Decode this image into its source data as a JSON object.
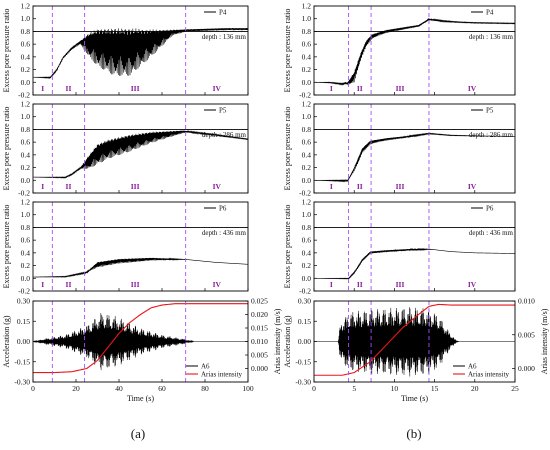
{
  "figure": {
    "caption_a": "(a)",
    "caption_b": "(b)"
  },
  "chart_data": [
    {
      "id": "a_p4",
      "type": "line",
      "column": "a",
      "row": 0,
      "ylabel": "Excess pore pressure ratio",
      "ylim": [
        -0.2,
        1.2
      ],
      "yticks": [
        -0.2,
        0.0,
        0.2,
        0.4,
        0.6,
        0.8,
        1.0,
        1.2
      ],
      "xlim": [
        0,
        100
      ],
      "xticks": [
        0,
        20,
        40,
        60,
        80,
        100
      ],
      "reference_line": 0.8,
      "legend": "P4",
      "annotation": "depth : 136 mm",
      "phase_boundaries": [
        9,
        24,
        71
      ],
      "phase_labels": [
        "I",
        "II",
        "III",
        "IV"
      ],
      "series": [
        {
          "color": "#000000",
          "envelope": [
            [
              0,
              0.08
            ],
            [
              8,
              0.08
            ],
            [
              11,
              0.2
            ],
            [
              14,
              0.4
            ],
            [
              18,
              0.55
            ],
            [
              22,
              0.65
            ],
            [
              26,
              0.75
            ],
            [
              30,
              0.8
            ],
            [
              40,
              0.8
            ],
            [
              55,
              0.8
            ],
            [
              65,
              0.82
            ],
            [
              71,
              0.83
            ],
            [
              80,
              0.84
            ],
            [
              90,
              0.85
            ],
            [
              100,
              0.85
            ]
          ],
          "oscillation": [
            [
              0,
              0
            ],
            [
              10,
              0.02
            ],
            [
              22,
              0.05
            ],
            [
              26,
              0.35
            ],
            [
              30,
              0.55
            ],
            [
              38,
              0.7
            ],
            [
              45,
              0.7
            ],
            [
              55,
              0.4
            ],
            [
              65,
              0.08
            ],
            [
              72,
              0.03
            ],
            [
              100,
              0.03
            ]
          ]
        }
      ]
    },
    {
      "id": "a_p5",
      "type": "line",
      "column": "a",
      "row": 1,
      "ylabel": "Excess pore pressure ratio",
      "ylim": [
        -0.2,
        1.2
      ],
      "yticks": [
        -0.2,
        0.0,
        0.2,
        0.4,
        0.6,
        0.8,
        1.0,
        1.2
      ],
      "xlim": [
        0,
        100
      ],
      "xticks": [
        0,
        20,
        40,
        60,
        80,
        100
      ],
      "reference_line": 0.8,
      "legend": "P5",
      "annotation": "depth : 286 mm",
      "phase_boundaries": [
        9,
        24,
        71
      ],
      "phase_labels": [
        "I",
        "II",
        "III",
        "IV"
      ],
      "series": [
        {
          "color": "#000000",
          "envelope": [
            [
              0,
              0.05
            ],
            [
              15,
              0.05
            ],
            [
              18,
              0.1
            ],
            [
              22,
              0.2
            ],
            [
              26,
              0.38
            ],
            [
              30,
              0.55
            ],
            [
              35,
              0.62
            ],
            [
              45,
              0.7
            ],
            [
              55,
              0.75
            ],
            [
              70,
              0.78
            ],
            [
              85,
              0.72
            ],
            [
              100,
              0.65
            ]
          ],
          "oscillation": [
            [
              0,
              0
            ],
            [
              22,
              0.02
            ],
            [
              26,
              0.2
            ],
            [
              30,
              0.3
            ],
            [
              45,
              0.25
            ],
            [
              60,
              0.12
            ],
            [
              72,
              0.02
            ],
            [
              100,
              0.01
            ]
          ]
        }
      ]
    },
    {
      "id": "a_p6",
      "type": "line",
      "column": "a",
      "row": 2,
      "ylabel": "Excess pore pressure ratio",
      "ylim": [
        -0.2,
        1.2
      ],
      "yticks": [
        -0.2,
        0.0,
        0.2,
        0.4,
        0.6,
        0.8,
        1.0,
        1.2
      ],
      "xlim": [
        0,
        100
      ],
      "xticks": [
        0,
        20,
        40,
        60,
        80,
        100
      ],
      "reference_line": 0.8,
      "legend": "P6",
      "annotation": "depth : 436 mm",
      "phase_boundaries": [
        9,
        24,
        71
      ],
      "phase_labels": [
        "I",
        "II",
        "III",
        "IV"
      ],
      "series": [
        {
          "color": "#000000",
          "envelope": [
            [
              0,
              0.02
            ],
            [
              15,
              0.03
            ],
            [
              25,
              0.1
            ],
            [
              30,
              0.25
            ],
            [
              40,
              0.3
            ],
            [
              55,
              0.32
            ],
            [
              70,
              0.3
            ],
            [
              85,
              0.25
            ],
            [
              100,
              0.22
            ]
          ],
          "oscillation": [
            [
              0,
              0
            ],
            [
              26,
              0.02
            ],
            [
              30,
              0.08
            ],
            [
              45,
              0.06
            ],
            [
              60,
              0.03
            ],
            [
              72,
              0.0
            ],
            [
              100,
              0.0
            ]
          ]
        }
      ]
    },
    {
      "id": "a_acc",
      "type": "line",
      "column": "a",
      "row": 3,
      "ylabel": "Acceleration (g)",
      "y2label": "Arias intensity (m/s)",
      "ylim": [
        -0.3,
        0.3
      ],
      "yticks": [
        -0.3,
        -0.15,
        0.0,
        0.15,
        0.3
      ],
      "y2lim": [
        -0.005,
        0.025
      ],
      "y2ticks": [
        0.0,
        0.005,
        0.01,
        0.015,
        0.02,
        0.025
      ],
      "xlim": [
        0,
        100
      ],
      "xticks": [
        0,
        20,
        40,
        60,
        80,
        100
      ],
      "xlabel": "Time (s)",
      "phase_boundaries": [
        9,
        24,
        71
      ],
      "legend_entries": [
        "A6",
        "Arias intensity"
      ],
      "series": [
        {
          "name": "A6",
          "color": "#000000",
          "amplitude": [
            [
              0,
              0
            ],
            [
              5,
              0.02
            ],
            [
              15,
              0.05
            ],
            [
              25,
              0.12
            ],
            [
              32,
              0.22
            ],
            [
              40,
              0.18
            ],
            [
              50,
              0.1
            ],
            [
              60,
              0.05
            ],
            [
              70,
              0.02
            ],
            [
              75,
              0
            ],
            [
              100,
              0
            ]
          ]
        },
        {
          "name": "Arias intensity",
          "color": "#e8161b",
          "y2": [
            [
              0,
              -0.0015
            ],
            [
              10,
              -0.0015
            ],
            [
              18,
              -0.0012
            ],
            [
              25,
              0.0
            ],
            [
              30,
              0.003
            ],
            [
              35,
              0.008
            ],
            [
              40,
              0.013
            ],
            [
              45,
              0.017
            ],
            [
              50,
              0.02
            ],
            [
              55,
              0.0225
            ],
            [
              60,
              0.0235
            ],
            [
              66,
              0.024
            ],
            [
              100,
              0.024
            ]
          ]
        }
      ]
    },
    {
      "id": "b_p4",
      "type": "line",
      "column": "b",
      "row": 0,
      "ylabel": "Excess pore pressure ratio",
      "ylim": [
        -0.2,
        1.2
      ],
      "yticks": [
        -0.2,
        0.0,
        0.2,
        0.4,
        0.6,
        0.8,
        1.0,
        1.2
      ],
      "xlim": [
        0,
        25
      ],
      "xticks": [
        0,
        5,
        10,
        15,
        20,
        25
      ],
      "reference_line": 0.8,
      "legend": "P4",
      "annotation": "depth : 136 mm",
      "phase_boundaries": [
        4.3,
        7.1,
        14.3
      ],
      "phase_labels": [
        "I",
        "II",
        "III",
        "IV"
      ],
      "series": [
        {
          "color": "#000000",
          "envelope": [
            [
              0,
              0.0
            ],
            [
              2,
              0.0
            ],
            [
              3.5,
              -0.02
            ],
            [
              4.2,
              0.0
            ],
            [
              5,
              0.15
            ],
            [
              5.8,
              0.45
            ],
            [
              6.5,
              0.65
            ],
            [
              7.2,
              0.75
            ],
            [
              9,
              0.82
            ],
            [
              11,
              0.86
            ],
            [
              13,
              0.9
            ],
            [
              14.3,
              1.0
            ],
            [
              16,
              0.97
            ],
            [
              18,
              0.95
            ],
            [
              20,
              0.94
            ],
            [
              25,
              0.93
            ]
          ],
          "oscillation": [
            [
              0,
              0
            ],
            [
              4,
              0.02
            ],
            [
              5,
              0.15
            ],
            [
              6,
              0.1
            ],
            [
              8,
              0.05
            ],
            [
              12,
              0.03
            ],
            [
              15,
              0.02
            ],
            [
              18,
              0.01
            ],
            [
              25,
              0.01
            ]
          ]
        }
      ]
    },
    {
      "id": "b_p5",
      "type": "line",
      "column": "b",
      "row": 1,
      "ylabel": "Excess pore pressure ratio",
      "ylim": [
        -0.2,
        1.2
      ],
      "yticks": [
        -0.2,
        0.0,
        0.2,
        0.4,
        0.6,
        0.8,
        1.0,
        1.2
      ],
      "xlim": [
        0,
        25
      ],
      "xticks": [
        0,
        5,
        10,
        15,
        20,
        25
      ],
      "reference_line": 0.8,
      "legend": "P5",
      "annotation": "depth : 286 mm",
      "phase_boundaries": [
        4.3,
        7.1,
        14.3
      ],
      "phase_labels": [
        "I",
        "II",
        "III",
        "IV"
      ],
      "series": [
        {
          "color": "#000000",
          "envelope": [
            [
              0,
              0.0
            ],
            [
              4.2,
              0.0
            ],
            [
              5,
              0.2
            ],
            [
              6,
              0.5
            ],
            [
              7,
              0.62
            ],
            [
              9,
              0.66
            ],
            [
              12,
              0.7
            ],
            [
              14.3,
              0.74
            ],
            [
              17,
              0.71
            ],
            [
              20,
              0.7
            ],
            [
              25,
              0.69
            ]
          ],
          "oscillation": [
            [
              0,
              0
            ],
            [
              4.3,
              0.02
            ],
            [
              5.5,
              0.08
            ],
            [
              8,
              0.04
            ],
            [
              12,
              0.02
            ],
            [
              15,
              0.01
            ],
            [
              25,
              0.0
            ]
          ]
        }
      ]
    },
    {
      "id": "b_p6",
      "type": "line",
      "column": "b",
      "row": 2,
      "ylabel": "Excess pore pressure ratio",
      "ylim": [
        -0.2,
        1.2
      ],
      "yticks": [
        -0.2,
        0.0,
        0.2,
        0.4,
        0.6,
        0.8,
        1.0,
        1.2
      ],
      "xlim": [
        0,
        25
      ],
      "xticks": [
        0,
        5,
        10,
        15,
        20,
        25
      ],
      "reference_line": 0.8,
      "legend": "P6",
      "annotation": "depth : 436 mm",
      "phase_boundaries": [
        4.3,
        7.1,
        14.3
      ],
      "phase_labels": [
        "I",
        "II",
        "III",
        "IV"
      ],
      "series": [
        {
          "color": "#000000",
          "envelope": [
            [
              0,
              0.0
            ],
            [
              4.3,
              0.0
            ],
            [
              5,
              0.1
            ],
            [
              6,
              0.3
            ],
            [
              7,
              0.42
            ],
            [
              9,
              0.44
            ],
            [
              12,
              0.46
            ],
            [
              14.3,
              0.46
            ],
            [
              17,
              0.42
            ],
            [
              20,
              0.4
            ],
            [
              25,
              0.39
            ]
          ],
          "oscillation": [
            [
              0,
              0
            ],
            [
              4.3,
              0.01
            ],
            [
              5.5,
              0.04
            ],
            [
              8,
              0.03
            ],
            [
              13,
              0.02
            ],
            [
              15,
              0.0
            ],
            [
              25,
              0.0
            ]
          ]
        }
      ]
    },
    {
      "id": "b_acc",
      "type": "line",
      "column": "b",
      "row": 3,
      "ylabel": "Acceleration (g)",
      "y2label": "Arias intensity (m/s)",
      "ylim": [
        -0.3,
        0.3
      ],
      "yticks": [
        -0.3,
        -0.15,
        0.0,
        0.15,
        0.3
      ],
      "y2lim": [
        -0.002,
        0.01
      ],
      "y2ticks": [
        0.0,
        0.005,
        0.01
      ],
      "y2ticklabels": [
        "0.000",
        "0.005",
        "0.010"
      ],
      "xlim": [
        0,
        25
      ],
      "xticks": [
        0,
        5,
        10,
        15,
        20,
        25
      ],
      "xlabel": "Time (s)",
      "phase_boundaries": [
        4.3,
        7.1,
        14.3
      ],
      "legend_entries": [
        "A6",
        "Arias intensity"
      ],
      "series": [
        {
          "name": "A6",
          "color": "#000000",
          "amplitude": [
            [
              0,
              0
            ],
            [
              3,
              0.0
            ],
            [
              3.3,
              0.15
            ],
            [
              4.5,
              0.22
            ],
            [
              7,
              0.24
            ],
            [
              12,
              0.26
            ],
            [
              14,
              0.25
            ],
            [
              15.5,
              0.2
            ],
            [
              16.5,
              0.1
            ],
            [
              17.5,
              0.02
            ],
            [
              18,
              0
            ],
            [
              25,
              0
            ]
          ]
        },
        {
          "name": "Arias intensity",
          "color": "#e8161b",
          "y2": [
            [
              0,
              -0.001
            ],
            [
              3.5,
              -0.001
            ],
            [
              5,
              -0.0006
            ],
            [
              7,
              0.001
            ],
            [
              9,
              0.0035
            ],
            [
              11,
              0.006
            ],
            [
              13,
              0.008
            ],
            [
              14.3,
              0.0092
            ],
            [
              15.5,
              0.0095
            ],
            [
              17,
              0.0094
            ],
            [
              25,
              0.0094
            ]
          ]
        }
      ]
    }
  ]
}
